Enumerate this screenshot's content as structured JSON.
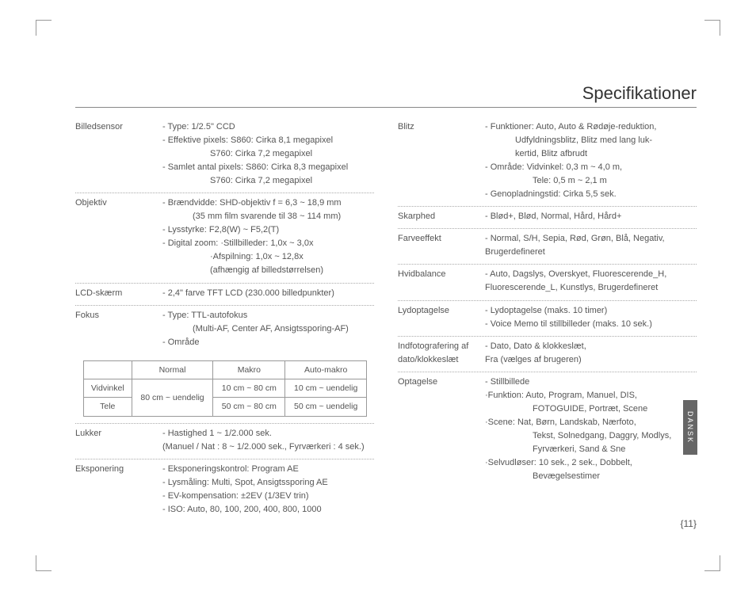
{
  "title": "Specifikationer",
  "sideTab": "DANSK",
  "pageNumber": "{11}",
  "left": [
    {
      "label": "Billedsensor",
      "lines": [
        "- Type: 1/2.5\" CCD",
        "- Effektive pixels: S860: Cirka 8,1 megapixel",
        "S760: Cirka 7,2 megapixel",
        "- Samlet antal pixels: S860: Cirka 8,3 megapixel",
        "S760: Cirka 7,2 megapixel"
      ],
      "indents": [
        0,
        0,
        2,
        0,
        2
      ]
    },
    {
      "label": "Objektiv",
      "lines": [
        "- Brændvidde: SHD-objektiv f = 6,3 ~ 18,9 mm",
        "(35 mm film svarende til 38 ~ 114 mm)",
        "- Lysstyrke: F2,8(W) ~ F5,2(T)",
        "- Digital zoom: ·Stillbilleder: 1,0x ~ 3,0x",
        "·Afspilning: 1,0x ~ 12,8x",
        "(afhængig af billedstørrelsen)"
      ],
      "indents": [
        0,
        1,
        0,
        0,
        2,
        2
      ]
    },
    {
      "label": "LCD-skærm",
      "lines": [
        "- 2,4\" farve TFT LCD (230.000 billedpunkter)"
      ],
      "indents": [
        0
      ]
    },
    {
      "label": "Fokus",
      "lines": [
        "- Type: TTL-autofokus",
        "(Multi-AF, Center AF, Ansigtssporing-AF)",
        "- Område"
      ],
      "indents": [
        0,
        1,
        0
      ],
      "hasTable": true,
      "noBorder": true
    },
    {
      "label": "Lukker",
      "lines": [
        "- Hastighed 1 ~ 1/2.000 sek.",
        "(Manuel / Nat : 8 ~ 1/2.000 sek., Fyrværkeri : 4 sek.)"
      ],
      "indents": [
        0,
        0
      ]
    },
    {
      "label": "Eksponering",
      "lines": [
        "- Eksponeringskontrol: Program AE",
        "- Lysmåling: Multi, Spot, Ansigtssporing AE",
        "- EV-kompensation: ±2EV (1/3EV trin)",
        "- ISO:  Auto, 80, 100, 200, 400, 800, 1000"
      ],
      "indents": [
        0,
        0,
        0,
        0
      ],
      "noBorder": true
    }
  ],
  "focusTable": {
    "headers": [
      "",
      "Normal",
      "Makro",
      "Auto-makro"
    ],
    "rows": [
      [
        "Vidvinkel",
        "80 cm ~ uendelig",
        "10 cm ~ 80 cm",
        "10 cm ~ uendelig"
      ],
      [
        "Tele",
        "",
        "50 cm ~ 80 cm",
        "50 cm ~ uendelig"
      ]
    ],
    "rowspan": {
      "col": 1,
      "rows": 2
    }
  },
  "right": [
    {
      "label": "Blitz",
      "lines": [
        "- Funktioner: Auto, Auto & Rødøje-reduktion,",
        "Udfyldningsblitz, Blitz med lang luk-",
        "kertid, Blitz afbrudt",
        "- Område: Vidvinkel: 0,3 m ~ 4,0 m,",
        "Tele: 0,5 m ~ 2,1 m",
        "- Genopladningstid: Cirka 5,5 sek."
      ],
      "indents": [
        0,
        1,
        1,
        0,
        2,
        0
      ]
    },
    {
      "label": "Skarphed",
      "lines": [
        "- Blød+, Blød, Normal, Hård, Hård+"
      ],
      "indents": [
        0
      ]
    },
    {
      "label": "Farveeffekt",
      "lines": [
        "- Normal, S/H, Sepia, Rød, Grøn, Blå, Negativ,",
        "Brugerdefineret"
      ],
      "indents": [
        0,
        0
      ]
    },
    {
      "label": "Hvidbalance",
      "lines": [
        "- Auto, Dagslys, Overskyet, Fluorescerende_H,",
        "Fluorescerende_L, Kunstlys, Brugerdefineret"
      ],
      "indents": [
        0,
        0
      ]
    },
    {
      "label": "Lydoptagelse",
      "lines": [
        "- Lydoptagelse (maks. 10 timer)",
        "- Voice Memo til stillbilleder (maks. 10 sek.)"
      ],
      "indents": [
        0,
        0
      ]
    },
    {
      "label": "Indfotografering af dato/klokkeslæt",
      "lines": [
        "- Dato, Dato & klokkeslæt,",
        "Fra (vælges af brugeren)"
      ],
      "indents": [
        0,
        0
      ]
    },
    {
      "label": "Optagelse",
      "lines": [
        "- Stillbillede",
        "·Funktion: Auto, Program, Manuel, DIS,",
        "FOTOGUIDE, Portræt, Scene",
        "·Scene: Nat, Børn, Landskab, Nærfoto,",
        "Tekst, Solnedgang, Daggry, Modlys,",
        "Fyrværkeri, Sand & Sne",
        "·Selvudløser: 10 sek., 2 sek., Dobbelt,",
        "Bevægelsestimer"
      ],
      "indents": [
        0,
        0,
        2,
        0,
        2,
        2,
        0,
        2
      ],
      "noBorder": true
    }
  ]
}
